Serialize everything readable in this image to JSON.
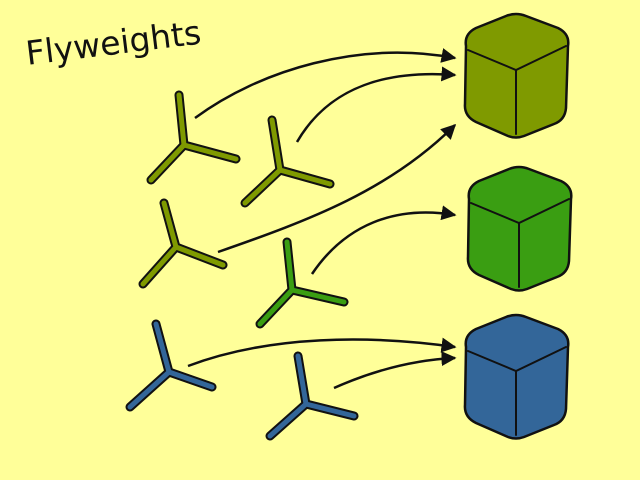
{
  "title": "Flyweights",
  "colors": {
    "background": "#ffff99",
    "olive": "#7f9a00",
    "green": "#3a9e12",
    "blue": "#336699",
    "outline": "#111111"
  },
  "flyweights": [
    {
      "name": "olive-flyweight",
      "color": "olive"
    },
    {
      "name": "green-flyweight",
      "color": "green"
    },
    {
      "name": "blue-flyweight",
      "color": "blue"
    }
  ],
  "objects": [
    {
      "name": "olive-object-1",
      "color": "olive",
      "target": "olive-flyweight"
    },
    {
      "name": "olive-object-2",
      "color": "olive",
      "target": "olive-flyweight"
    },
    {
      "name": "olive-object-3",
      "color": "olive",
      "target": "olive-flyweight"
    },
    {
      "name": "green-object-1",
      "color": "green",
      "target": "green-flyweight"
    },
    {
      "name": "blue-object-1",
      "color": "blue",
      "target": "blue-flyweight"
    },
    {
      "name": "blue-object-2",
      "color": "blue",
      "target": "blue-flyweight"
    }
  ]
}
